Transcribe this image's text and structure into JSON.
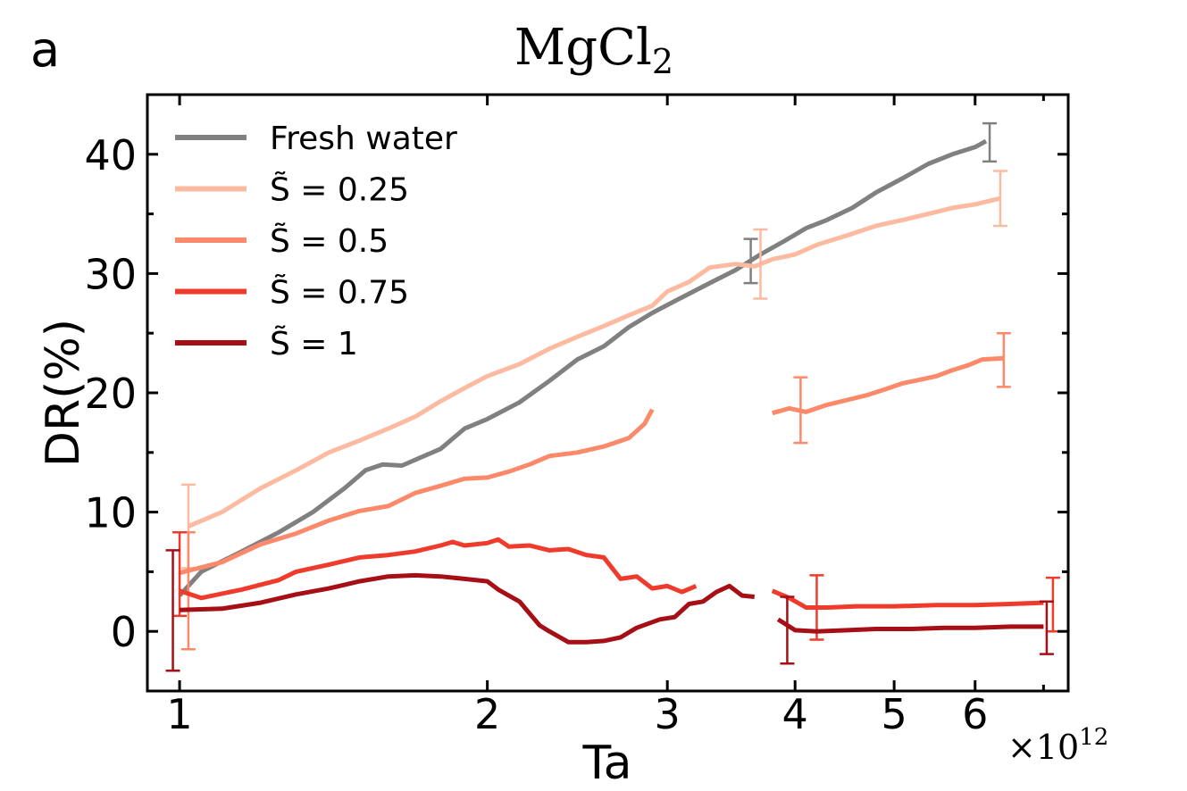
{
  "panel_label": "a",
  "title_main": "MgCl",
  "title_sub": "2",
  "x_multiplier_base": "×10",
  "x_multiplier_exp": "12",
  "chart_data": {
    "type": "line",
    "title": "MgCl2",
    "xlabel": "Ta",
    "ylabel": "DR(%)",
    "xscale": "log",
    "x_unit_multiplier": "1e12",
    "xlim": [
      0.93,
      7.4
    ],
    "ylim": [
      -5,
      45
    ],
    "xticks": [
      1,
      2,
      3,
      4,
      5,
      6
    ],
    "xtick_labels": [
      "1",
      "2",
      "3",
      "4",
      "5",
      "6"
    ],
    "yticks": [
      0,
      10,
      20,
      30,
      40
    ],
    "ytick_labels": [
      "0",
      "10",
      "20",
      "30",
      "40"
    ],
    "legend_position": "top-left",
    "series": [
      {
        "name": "Fresh water",
        "color": "#808080",
        "segments": [
          [
            [
              1.0,
              3.0
            ],
            [
              1.05,
              5.0
            ],
            [
              1.15,
              6.7
            ],
            [
              1.25,
              8.3
            ],
            [
              1.35,
              10.0
            ],
            [
              1.45,
              12.0
            ],
            [
              1.52,
              13.5
            ],
            [
              1.58,
              14.0
            ],
            [
              1.65,
              13.9
            ],
            [
              1.8,
              15.3
            ],
            [
              1.9,
              17.0
            ],
            [
              2.0,
              17.8
            ],
            [
              2.15,
              19.2
            ],
            [
              2.3,
              21.0
            ],
            [
              2.45,
              22.8
            ],
            [
              2.6,
              23.9
            ],
            [
              2.75,
              25.5
            ],
            [
              2.9,
              26.7
            ],
            [
              3.1,
              28.0
            ],
            [
              3.3,
              29.2
            ],
            [
              3.5,
              30.3
            ],
            [
              3.7,
              31.6
            ],
            [
              3.9,
              32.7
            ],
            [
              4.1,
              33.8
            ],
            [
              4.3,
              34.5
            ],
            [
              4.55,
              35.5
            ],
            [
              4.8,
              36.8
            ],
            [
              5.1,
              38.0
            ],
            [
              5.4,
              39.2
            ],
            [
              5.7,
              40.0
            ],
            [
              6.0,
              40.6
            ],
            [
              6.15,
              41.1
            ]
          ]
        ],
        "error_bars": [
          {
            "x": 3.62,
            "y": 31.0,
            "low": 29.2,
            "high": 32.9
          },
          {
            "x": 6.2,
            "y": 41.0,
            "low": 39.4,
            "high": 42.6
          }
        ]
      },
      {
        "name": "S̃ = 0.25",
        "color": "#fcbba1",
        "segments": [
          [
            [
              1.02,
              8.8
            ],
            [
              1.1,
              10.0
            ],
            [
              1.2,
              12.0
            ],
            [
              1.3,
              13.5
            ],
            [
              1.4,
              15.0
            ],
            [
              1.5,
              16.0
            ],
            [
              1.6,
              17.0
            ],
            [
              1.7,
              18.0
            ],
            [
              1.8,
              19.3
            ],
            [
              1.9,
              20.4
            ],
            [
              2.0,
              21.4
            ],
            [
              2.15,
              22.4
            ],
            [
              2.3,
              23.7
            ],
            [
              2.45,
              24.7
            ],
            [
              2.6,
              25.6
            ],
            [
              2.75,
              26.5
            ],
            [
              2.9,
              27.3
            ],
            [
              3.0,
              28.5
            ],
            [
              3.15,
              29.3
            ],
            [
              3.3,
              30.5
            ],
            [
              3.5,
              30.8
            ],
            [
              3.65,
              30.6
            ],
            [
              3.8,
              31.2
            ],
            [
              4.0,
              31.6
            ],
            [
              4.2,
              32.4
            ],
            [
              4.5,
              33.2
            ],
            [
              4.8,
              34.0
            ],
            [
              5.1,
              34.5
            ],
            [
              5.4,
              35.0
            ],
            [
              5.7,
              35.5
            ],
            [
              6.0,
              35.8
            ],
            [
              6.35,
              36.3
            ]
          ]
        ],
        "error_bars": [
          {
            "x": 1.02,
            "y": 8.8,
            "low": 5.3,
            "high": 12.3
          },
          {
            "x": 3.7,
            "y": 30.8,
            "low": 27.9,
            "high": 33.7
          },
          {
            "x": 6.35,
            "y": 36.3,
            "low": 34.0,
            "high": 38.6
          }
        ]
      },
      {
        "name": "S̃ = 0.5",
        "color": "#fc8a6a",
        "segments": [
          [
            [
              1.0,
              4.9
            ],
            [
              1.1,
              5.8
            ],
            [
              1.2,
              7.3
            ],
            [
              1.3,
              8.2
            ],
            [
              1.4,
              9.3
            ],
            [
              1.5,
              10.1
            ],
            [
              1.6,
              10.5
            ],
            [
              1.7,
              11.6
            ],
            [
              1.8,
              12.2
            ],
            [
              1.9,
              12.8
            ],
            [
              2.0,
              12.9
            ],
            [
              2.1,
              13.4
            ],
            [
              2.2,
              14.0
            ],
            [
              2.3,
              14.7
            ],
            [
              2.45,
              15.0
            ],
            [
              2.6,
              15.5
            ],
            [
              2.75,
              16.2
            ],
            [
              2.85,
              17.4
            ],
            [
              2.9,
              18.6
            ]
          ],
          [
            [
              3.8,
              18.3
            ],
            [
              3.95,
              18.7
            ],
            [
              4.1,
              18.4
            ],
            [
              4.3,
              19.0
            ],
            [
              4.5,
              19.4
            ],
            [
              4.7,
              19.8
            ],
            [
              4.9,
              20.3
            ],
            [
              5.1,
              20.8
            ],
            [
              5.3,
              21.1
            ],
            [
              5.5,
              21.4
            ],
            [
              5.7,
              21.9
            ],
            [
              5.9,
              22.3
            ],
            [
              6.1,
              22.8
            ],
            [
              6.4,
              22.9
            ]
          ]
        ],
        "error_bars": [
          {
            "x": 1.02,
            "y": 4.9,
            "low": -1.5,
            "high": 8.3
          },
          {
            "x": 4.05,
            "y": 18.5,
            "low": 15.8,
            "high": 21.3
          },
          {
            "x": 6.4,
            "y": 22.8,
            "low": 20.5,
            "high": 25.0
          }
        ]
      },
      {
        "name": "S̃ = 0.75",
        "color": "#ef3b2c",
        "segments": [
          [
            [
              1.0,
              3.4
            ],
            [
              1.05,
              2.8
            ],
            [
              1.15,
              3.5
            ],
            [
              1.25,
              4.3
            ],
            [
              1.3,
              5.0
            ],
            [
              1.4,
              5.6
            ],
            [
              1.5,
              6.2
            ],
            [
              1.6,
              6.4
            ],
            [
              1.7,
              6.7
            ],
            [
              1.8,
              7.2
            ],
            [
              1.85,
              7.5
            ],
            [
              1.9,
              7.2
            ],
            [
              2.0,
              7.4
            ],
            [
              2.05,
              7.7
            ],
            [
              2.1,
              7.1
            ],
            [
              2.2,
              7.2
            ],
            [
              2.3,
              6.8
            ],
            [
              2.4,
              6.9
            ],
            [
              2.5,
              6.4
            ],
            [
              2.6,
              6.2
            ],
            [
              2.7,
              4.4
            ],
            [
              2.8,
              4.6
            ],
            [
              2.9,
              3.6
            ],
            [
              3.0,
              3.8
            ],
            [
              3.1,
              3.3
            ],
            [
              3.2,
              3.8
            ]
          ],
          [
            [
              3.8,
              3.4
            ],
            [
              3.95,
              2.8
            ],
            [
              4.1,
              2.0
            ],
            [
              4.3,
              2.0
            ],
            [
              4.6,
              2.1
            ],
            [
              5.0,
              2.1
            ],
            [
              5.5,
              2.2
            ],
            [
              6.0,
              2.2
            ],
            [
              6.5,
              2.3
            ],
            [
              7.0,
              2.4
            ]
          ]
        ],
        "error_bars": [
          {
            "x": 1.0,
            "y": 3.4,
            "low": 1.3,
            "high": 8.3
          },
          {
            "x": 4.2,
            "y": 2.0,
            "low": -0.7,
            "high": 4.7
          },
          {
            "x": 7.15,
            "y": 2.3,
            "low": 0.0,
            "high": 4.5
          }
        ]
      },
      {
        "name": "S̃ = 1",
        "color": "#a50f15",
        "segments": [
          [
            [
              1.0,
              1.8
            ],
            [
              1.1,
              1.9
            ],
            [
              1.2,
              2.4
            ],
            [
              1.3,
              3.1
            ],
            [
              1.4,
              3.6
            ],
            [
              1.5,
              4.2
            ],
            [
              1.6,
              4.6
            ],
            [
              1.7,
              4.7
            ],
            [
              1.8,
              4.6
            ],
            [
              1.9,
              4.4
            ],
            [
              2.0,
              4.2
            ],
            [
              2.05,
              3.5
            ],
            [
              2.15,
              2.5
            ],
            [
              2.25,
              0.5
            ],
            [
              2.3,
              0.0
            ],
            [
              2.4,
              -0.9
            ],
            [
              2.5,
              -0.9
            ],
            [
              2.6,
              -0.8
            ],
            [
              2.7,
              -0.5
            ],
            [
              2.8,
              0.3
            ],
            [
              2.95,
              1.0
            ],
            [
              3.05,
              1.2
            ],
            [
              3.15,
              2.3
            ],
            [
              3.25,
              2.5
            ],
            [
              3.35,
              3.3
            ],
            [
              3.45,
              3.8
            ],
            [
              3.55,
              3.0
            ],
            [
              3.65,
              2.9
            ]
          ],
          [
            [
              3.85,
              1.0
            ],
            [
              4.0,
              0.1
            ],
            [
              4.2,
              0.0
            ],
            [
              4.5,
              0.1
            ],
            [
              4.8,
              0.2
            ],
            [
              5.2,
              0.2
            ],
            [
              5.6,
              0.3
            ],
            [
              6.0,
              0.3
            ],
            [
              6.5,
              0.4
            ],
            [
              7.0,
              0.4
            ]
          ]
        ],
        "error_bars": [
          {
            "x": 0.985,
            "y": 1.8,
            "low": -3.3,
            "high": 6.8
          },
          {
            "x": 3.93,
            "y": 0.0,
            "low": -2.7,
            "high": 2.9
          },
          {
            "x": 7.05,
            "y": 0.3,
            "low": -1.9,
            "high": 2.5
          }
        ]
      }
    ]
  }
}
